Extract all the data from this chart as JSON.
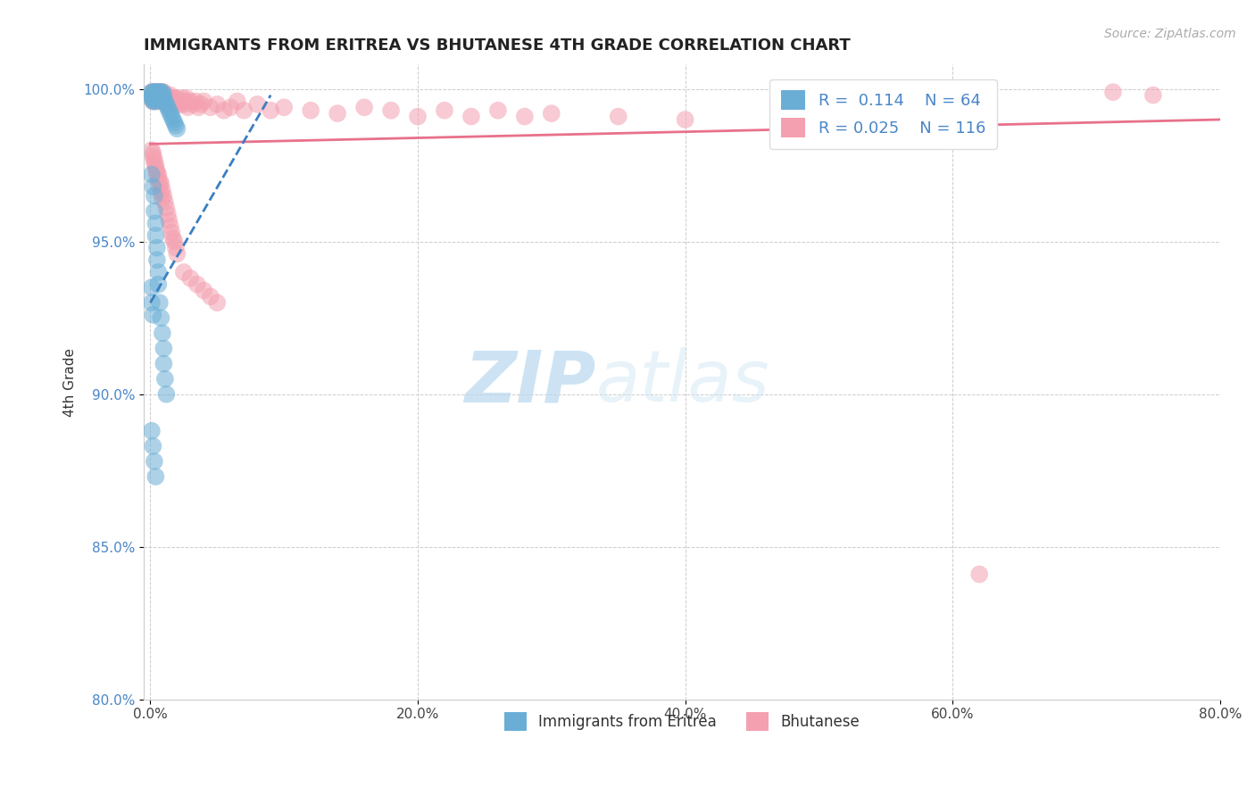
{
  "title": "IMMIGRANTS FROM ERITREA VS BHUTANESE 4TH GRADE CORRELATION CHART",
  "source_text": "Source: ZipAtlas.com",
  "ylabel_text": "4th Grade",
  "xlim": [
    -0.005,
    0.8
  ],
  "ylim": [
    0.8,
    1.008
  ],
  "xtick_labels": [
    "0.0%",
    "20.0%",
    "40.0%",
    "60.0%",
    "80.0%"
  ],
  "xtick_values": [
    0.0,
    0.2,
    0.4,
    0.6,
    0.8
  ],
  "ytick_labels": [
    "80.0%",
    "85.0%",
    "90.0%",
    "95.0%",
    "100.0%"
  ],
  "ytick_values": [
    0.8,
    0.85,
    0.9,
    0.95,
    1.0
  ],
  "blue_color": "#6aaed6",
  "pink_color": "#f4a0b0",
  "blue_line_color": "#3a7fc1",
  "pink_line_color": "#e8718a",
  "legend_blue_label": "Immigrants from Eritrea",
  "legend_pink_label": "Bhutanese",
  "watermark_top": "ZIP",
  "watermark_bottom": "atlas",
  "blue_scatter_x": [
    0.001,
    0.001,
    0.001,
    0.002,
    0.002,
    0.002,
    0.002,
    0.003,
    0.003,
    0.003,
    0.003,
    0.004,
    0.004,
    0.004,
    0.005,
    0.005,
    0.005,
    0.005,
    0.006,
    0.006,
    0.006,
    0.007,
    0.007,
    0.007,
    0.008,
    0.008,
    0.009,
    0.009,
    0.01,
    0.01,
    0.011,
    0.012,
    0.013,
    0.014,
    0.015,
    0.016,
    0.017,
    0.018,
    0.019,
    0.02,
    0.001,
    0.002,
    0.003,
    0.003,
    0.004,
    0.004,
    0.005,
    0.005,
    0.006,
    0.006,
    0.007,
    0.008,
    0.009,
    0.01,
    0.01,
    0.011,
    0.012,
    0.001,
    0.001,
    0.002,
    0.001,
    0.002,
    0.003,
    0.004
  ],
  "blue_scatter_y": [
    0.999,
    0.998,
    0.997,
    0.999,
    0.998,
    0.997,
    0.996,
    0.999,
    0.998,
    0.997,
    0.996,
    0.999,
    0.998,
    0.997,
    0.999,
    0.998,
    0.997,
    0.996,
    0.999,
    0.998,
    0.997,
    0.999,
    0.998,
    0.997,
    0.999,
    0.998,
    0.999,
    0.997,
    0.998,
    0.997,
    0.996,
    0.995,
    0.994,
    0.993,
    0.992,
    0.991,
    0.99,
    0.989,
    0.988,
    0.987,
    0.972,
    0.968,
    0.965,
    0.96,
    0.956,
    0.952,
    0.948,
    0.944,
    0.94,
    0.936,
    0.93,
    0.925,
    0.92,
    0.915,
    0.91,
    0.905,
    0.9,
    0.935,
    0.93,
    0.926,
    0.888,
    0.883,
    0.878,
    0.873
  ],
  "pink_scatter_x": [
    0.001,
    0.001,
    0.001,
    0.002,
    0.002,
    0.002,
    0.002,
    0.003,
    0.003,
    0.003,
    0.003,
    0.004,
    0.004,
    0.004,
    0.004,
    0.005,
    0.005,
    0.005,
    0.006,
    0.006,
    0.006,
    0.007,
    0.007,
    0.007,
    0.008,
    0.008,
    0.008,
    0.009,
    0.009,
    0.01,
    0.01,
    0.011,
    0.011,
    0.012,
    0.012,
    0.013,
    0.013,
    0.014,
    0.015,
    0.015,
    0.016,
    0.017,
    0.018,
    0.019,
    0.02,
    0.021,
    0.022,
    0.023,
    0.024,
    0.025,
    0.026,
    0.027,
    0.028,
    0.03,
    0.032,
    0.034,
    0.036,
    0.038,
    0.04,
    0.045,
    0.05,
    0.055,
    0.06,
    0.065,
    0.07,
    0.08,
    0.09,
    0.1,
    0.12,
    0.14,
    0.16,
    0.18,
    0.2,
    0.22,
    0.24,
    0.26,
    0.28,
    0.3,
    0.35,
    0.4,
    0.002,
    0.003,
    0.004,
    0.005,
    0.006,
    0.007,
    0.008,
    0.009,
    0.001,
    0.002,
    0.003,
    0.004,
    0.005,
    0.006,
    0.007,
    0.008,
    0.009,
    0.01,
    0.011,
    0.012,
    0.013,
    0.014,
    0.015,
    0.016,
    0.017,
    0.018,
    0.019,
    0.02,
    0.025,
    0.03,
    0.035,
    0.04,
    0.045,
    0.05,
    0.62,
    0.72,
    0.75
  ],
  "pink_scatter_y": [
    0.999,
    0.998,
    0.997,
    0.999,
    0.998,
    0.997,
    0.996,
    0.999,
    0.998,
    0.997,
    0.996,
    0.999,
    0.998,
    0.997,
    0.996,
    0.999,
    0.998,
    0.997,
    0.999,
    0.998,
    0.997,
    0.999,
    0.998,
    0.997,
    0.999,
    0.998,
    0.996,
    0.999,
    0.997,
    0.999,
    0.998,
    0.998,
    0.996,
    0.998,
    0.996,
    0.997,
    0.995,
    0.997,
    0.998,
    0.996,
    0.997,
    0.996,
    0.997,
    0.996,
    0.997,
    0.995,
    0.996,
    0.995,
    0.997,
    0.996,
    0.995,
    0.997,
    0.994,
    0.996,
    0.995,
    0.996,
    0.994,
    0.995,
    0.996,
    0.994,
    0.995,
    0.993,
    0.994,
    0.996,
    0.993,
    0.995,
    0.993,
    0.994,
    0.993,
    0.992,
    0.994,
    0.993,
    0.991,
    0.993,
    0.991,
    0.993,
    0.991,
    0.992,
    0.991,
    0.99,
    0.978,
    0.976,
    0.974,
    0.972,
    0.97,
    0.968,
    0.966,
    0.964,
    0.98,
    0.979,
    0.977,
    0.975,
    0.973,
    0.972,
    0.97,
    0.969,
    0.967,
    0.965,
    0.963,
    0.961,
    0.959,
    0.957,
    0.955,
    0.953,
    0.951,
    0.95,
    0.948,
    0.946,
    0.94,
    0.938,
    0.936,
    0.934,
    0.932,
    0.93,
    0.841,
    0.999,
    0.998
  ],
  "blue_line_x0": 0.0,
  "blue_line_y0": 0.93,
  "blue_line_x1": 0.09,
  "blue_line_y1": 0.998,
  "pink_line_x0": 0.0,
  "pink_line_y0": 0.982,
  "pink_line_x1": 0.8,
  "pink_line_y1": 0.99
}
